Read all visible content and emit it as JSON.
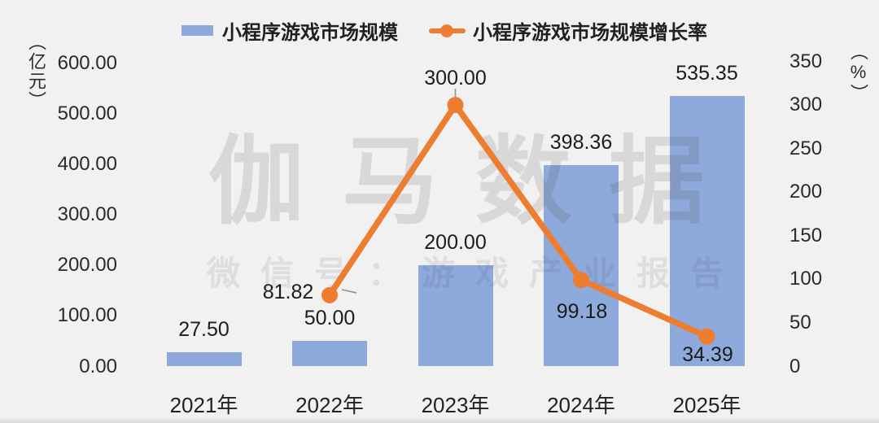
{
  "legend": {
    "bar_label": "小程序游戏市场规模",
    "line_label": "小程序游戏市场规模增长率"
  },
  "watermark": {
    "title": "伽马数据",
    "subtitle": "微信号：游戏产业报告"
  },
  "left_axis": {
    "unit": "（亿元）",
    "ticks": [
      "600.00",
      "500.00",
      "400.00",
      "300.00",
      "200.00",
      "100.00",
      "0.00"
    ]
  },
  "right_axis": {
    "unit": "（%）",
    "ticks": [
      "350",
      "300",
      "250",
      "200",
      "150",
      "100",
      "50",
      "0"
    ]
  },
  "colors": {
    "bar": "#8EA9DB",
    "line": "#ED7D31",
    "background": "#F1F1F2",
    "leader": "#9a9a9a"
  },
  "chart_data": {
    "type": "bar+line combo",
    "categories": [
      "2021年",
      "2022年",
      "2023年",
      "2024年",
      "2025年"
    ],
    "series": [
      {
        "name": "小程序游戏市场规模",
        "type": "bar",
        "axis": "left",
        "unit": "亿元",
        "color": "#8EA9DB",
        "values": [
          27.5,
          50.0,
          200.0,
          398.36,
          535.35
        ],
        "labels": [
          "27.50",
          "50.00",
          "200.00",
          "398.36",
          "535.35"
        ]
      },
      {
        "name": "小程序游戏市场规模增长率",
        "type": "line",
        "axis": "right",
        "unit": "%",
        "color": "#ED7D31",
        "values": [
          null,
          81.82,
          300.0,
          99.18,
          34.39
        ],
        "labels": [
          null,
          "81.82",
          "300.00",
          "99.18",
          "34.39"
        ]
      }
    ],
    "left_ylim": [
      0,
      600
    ],
    "right_ylim": [
      0,
      350
    ],
    "grid": false,
    "legend_position": "top"
  }
}
